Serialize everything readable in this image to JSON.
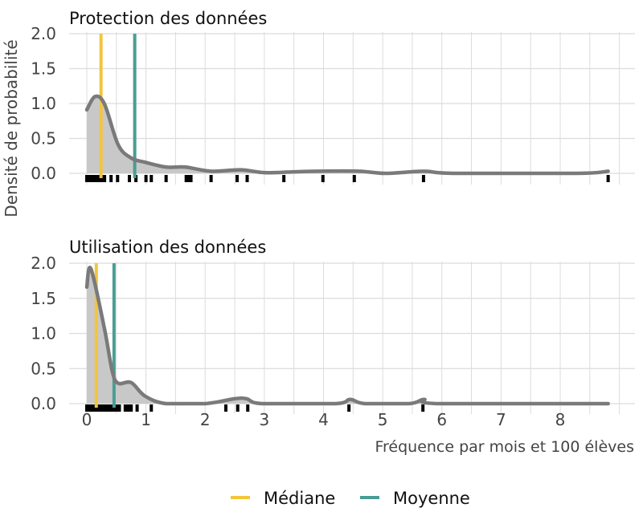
{
  "chart_data": [
    {
      "type": "area",
      "title": "Protection des données",
      "ylabel": "Densité de probabilité",
      "xlabel": "",
      "xlim": [
        -0.3,
        9.2
      ],
      "ylim": [
        0,
        2.0
      ],
      "yticks": [
        0.0,
        0.5,
        1.0,
        1.5,
        2.0
      ],
      "ytick_labels": [
        "0.0",
        "0.5",
        "1.0",
        "1.5",
        "2.0"
      ],
      "grid": true,
      "density": {
        "x": [
          0,
          0.14,
          0.3,
          0.53,
          0.75,
          0.98,
          1.34,
          1.66,
          2.1,
          2.6,
          3.0,
          3.46,
          3.9,
          4.6,
          5.05,
          5.7,
          6.2,
          8.3,
          8.81
        ],
        "y": [
          0.91,
          1.1,
          0.99,
          0.41,
          0.22,
          0.16,
          0.09,
          0.09,
          0.03,
          0.05,
          0.01,
          0.02,
          0.03,
          0.03,
          0.0,
          0.03,
          0.0,
          0.0,
          0.03
        ]
      },
      "rug": [
        0.0,
        0.03,
        0.06,
        0.09,
        0.12,
        0.15,
        0.18,
        0.21,
        0.24,
        0.27,
        0.3,
        0.41,
        0.52,
        0.72,
        0.83,
        1.0,
        1.09,
        1.34,
        1.68,
        1.72,
        1.76,
        2.1,
        2.54,
        2.71,
        3.33,
        3.99,
        4.52,
        5.69,
        8.81
      ],
      "median": 0.24,
      "mean": 0.81
    },
    {
      "type": "area",
      "title": "Utilisation des données",
      "xlabel": "Fréquence par mois et 100 élèves",
      "xlim": [
        -0.3,
        9.2
      ],
      "ylim": [
        0,
        2.0
      ],
      "xticks": [
        0,
        1,
        2,
        3,
        4,
        5,
        6,
        7,
        8
      ],
      "xtick_labels": [
        "0",
        "1",
        "2",
        "3",
        "4",
        "5",
        "6",
        "7",
        "8"
      ],
      "yticks": [
        0.0,
        0.5,
        1.0,
        1.5,
        2.0
      ],
      "ytick_labels": [
        "0.0",
        "0.5",
        "1.0",
        "1.5",
        "2.0"
      ],
      "grid": true,
      "density": {
        "x": [
          0,
          0.07,
          0.3,
          0.43,
          0.53,
          0.75,
          0.98,
          1.34,
          2.0,
          2.5,
          2.7,
          2.97,
          4.2,
          4.45,
          4.7,
          5.45,
          5.7,
          5.95,
          8.81
        ],
        "y": [
          1.66,
          1.92,
          1.06,
          0.46,
          0.29,
          0.3,
          0.11,
          0.0,
          0.0,
          0.07,
          0.07,
          0.0,
          0.0,
          0.06,
          0.0,
          0.0,
          0.06,
          0.0,
          0.0
        ]
      },
      "rug": [
        0.0,
        0.04,
        0.08,
        0.12,
        0.16,
        0.2,
        0.25,
        0.3,
        0.35,
        0.4,
        0.45,
        0.5,
        0.55,
        0.65,
        0.7,
        0.75,
        0.85,
        1.09,
        2.35,
        2.55,
        2.72,
        4.43,
        5.68
      ],
      "median": 0.16,
      "mean": 0.46
    }
  ],
  "legend": {
    "position": "bottom",
    "items": [
      {
        "label": "Médiane",
        "color": "#f2c53d"
      },
      {
        "label": "Moyenne",
        "color": "#4a9d94"
      }
    ]
  },
  "colors": {
    "density_line": "#7a7a7a",
    "density_fill": "#c8c8c8",
    "rug": "#000000",
    "grid": "#dcdcdc"
  }
}
